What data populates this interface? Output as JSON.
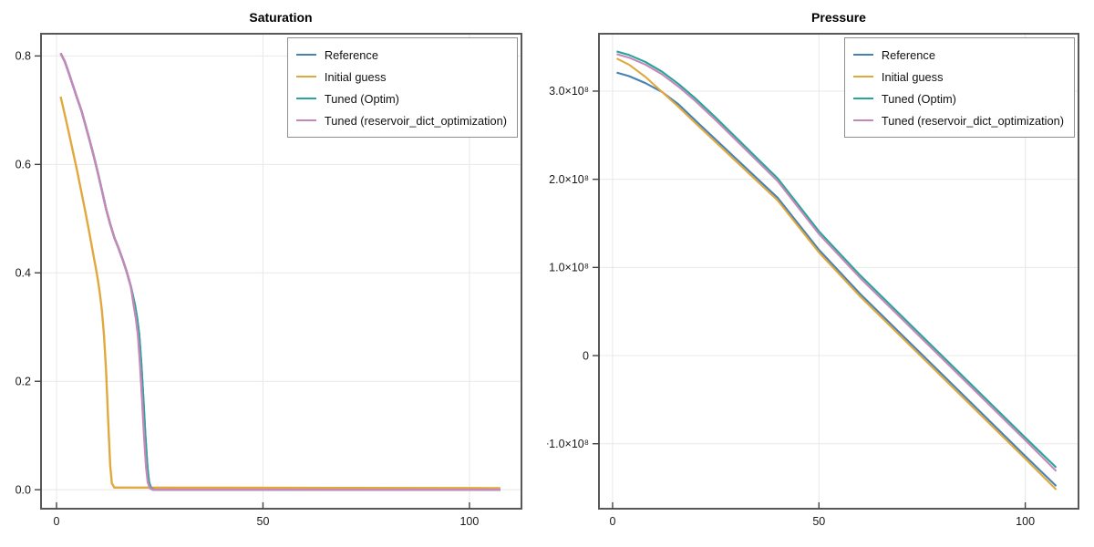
{
  "figure": {
    "background": "#ffffff"
  },
  "chart_data": [
    {
      "type": "line",
      "title": "Saturation",
      "xlabel": "",
      "ylabel": "",
      "grid": true,
      "legend_position": "top-right",
      "xlim": [
        -3.75,
        112.6
      ],
      "ylim": [
        -0.035,
        0.841
      ],
      "xticks": {
        "values": [
          0,
          50,
          100
        ],
        "labels": [
          "0",
          "50",
          "100"
        ]
      },
      "yticks": {
        "values": [
          0.0,
          0.2,
          0.4,
          0.6,
          0.8
        ],
        "labels": [
          "0.0",
          "0.2",
          "0.4",
          "0.6",
          "0.8"
        ]
      },
      "series": [
        {
          "name": "Reference",
          "color": "#4682b4",
          "points": [
            [
              1,
              0.805
            ],
            [
              2,
              0.79
            ],
            [
              3,
              0.768
            ],
            [
              4,
              0.745
            ],
            [
              5,
              0.722
            ],
            [
              6,
              0.7
            ],
            [
              7,
              0.673
            ],
            [
              8,
              0.645
            ],
            [
              9,
              0.616
            ],
            [
              10,
              0.585
            ],
            [
              11,
              0.552
            ],
            [
              12,
              0.518
            ],
            [
              13,
              0.49
            ],
            [
              14,
              0.465
            ],
            [
              15,
              0.446
            ],
            [
              16,
              0.425
            ],
            [
              17,
              0.402
            ],
            [
              18,
              0.375
            ],
            [
              19,
              0.34
            ],
            [
              19.5,
              0.317
            ],
            [
              20,
              0.287
            ],
            [
              20.5,
              0.235
            ],
            [
              21,
              0.17
            ],
            [
              21.5,
              0.1
            ],
            [
              22,
              0.042
            ],
            [
              22.4,
              0.014
            ],
            [
              22.9,
              0.003
            ],
            [
              23.6,
              0.0
            ],
            [
              107.5,
              0.0
            ]
          ]
        },
        {
          "name": "Initial guess",
          "color": "#e1a83d",
          "points": [
            [
              1,
              0.725
            ],
            [
              2,
              0.692
            ],
            [
              3,
              0.658
            ],
            [
              4,
              0.623
            ],
            [
              5,
              0.588
            ],
            [
              6,
              0.55
            ],
            [
              7,
              0.512
            ],
            [
              8,
              0.472
            ],
            [
              9,
              0.43
            ],
            [
              9.5,
              0.41
            ],
            [
              10,
              0.388
            ],
            [
              10.5,
              0.362
            ],
            [
              11,
              0.33
            ],
            [
              11.5,
              0.285
            ],
            [
              12,
              0.22
            ],
            [
              12.5,
              0.13
            ],
            [
              13,
              0.045
            ],
            [
              13.4,
              0.012
            ],
            [
              14,
              0.004
            ],
            [
              107.5,
              0.003
            ]
          ]
        },
        {
          "name": "Tuned (Optim)",
          "color": "#27a59a",
          "points": [
            [
              1,
              0.805
            ],
            [
              2,
              0.79
            ],
            [
              3,
              0.768
            ],
            [
              4,
              0.745
            ],
            [
              5,
              0.722
            ],
            [
              6,
              0.7
            ],
            [
              7,
              0.673
            ],
            [
              8,
              0.645
            ],
            [
              9,
              0.616
            ],
            [
              10,
              0.585
            ],
            [
              11,
              0.552
            ],
            [
              12,
              0.518
            ],
            [
              13,
              0.49
            ],
            [
              14,
              0.465
            ],
            [
              15,
              0.446
            ],
            [
              16,
              0.425
            ],
            [
              17,
              0.402
            ],
            [
              18,
              0.375
            ],
            [
              19,
              0.34
            ],
            [
              19.5,
              0.317
            ],
            [
              20,
              0.287
            ],
            [
              20.5,
              0.235
            ],
            [
              21,
              0.17
            ],
            [
              21.5,
              0.1
            ],
            [
              22,
              0.042
            ],
            [
              22.4,
              0.014
            ],
            [
              22.9,
              0.003
            ],
            [
              23.6,
              0.0
            ],
            [
              107.5,
              0.0
            ]
          ]
        },
        {
          "name": "Tuned (reservoir_dict_optimization)",
          "color": "#c687b9",
          "points": [
            [
              1,
              0.805
            ],
            [
              2,
              0.79
            ],
            [
              3,
              0.768
            ],
            [
              4,
              0.745
            ],
            [
              5,
              0.722
            ],
            [
              6,
              0.7
            ],
            [
              7,
              0.673
            ],
            [
              8,
              0.645
            ],
            [
              9,
              0.616
            ],
            [
              10,
              0.585
            ],
            [
              11,
              0.552
            ],
            [
              12,
              0.518
            ],
            [
              13,
              0.49
            ],
            [
              14,
              0.465
            ],
            [
              15,
              0.446
            ],
            [
              16,
              0.425
            ],
            [
              17,
              0.402
            ],
            [
              18,
              0.375
            ],
            [
              18.7,
              0.34
            ],
            [
              19.2,
              0.317
            ],
            [
              19.7,
              0.287
            ],
            [
              20.2,
              0.235
            ],
            [
              20.7,
              0.17
            ],
            [
              21.2,
              0.1
            ],
            [
              21.7,
              0.042
            ],
            [
              22.1,
              0.014
            ],
            [
              22.6,
              0.003
            ],
            [
              23.3,
              0.0
            ],
            [
              107.5,
              0.0
            ]
          ]
        }
      ]
    },
    {
      "type": "line",
      "title": "Pressure",
      "xlabel": "",
      "ylabel": "",
      "grid": true,
      "legend_position": "top-right",
      "xlim": [
        -3.3,
        112.9
      ],
      "ylim": [
        -173700000.0,
        365100000.0
      ],
      "xticks": {
        "values": [
          0,
          50,
          100
        ],
        "labels": [
          "0",
          "50",
          "100"
        ]
      },
      "yticks": {
        "values": [
          -100000000.0,
          0,
          100000000.0,
          200000000.0,
          300000000.0
        ],
        "labels": [
          "−1.0×10⁸",
          "0",
          "1.0×10⁸",
          "2.0×10⁸",
          "3.0×10⁸"
        ]
      },
      "series": [
        {
          "name": "Reference",
          "color": "#4682b4",
          "points": [
            [
              1,
              321000000.0
            ],
            [
              4,
              317000000.0
            ],
            [
              8,
              309000000.0
            ],
            [
              12,
              299000000.0
            ],
            [
              16,
              285000000.0
            ],
            [
              20,
              267000000.0
            ],
            [
              25,
              245000000.0
            ],
            [
              30,
              223000000.0
            ],
            [
              35,
              201000000.0
            ],
            [
              40,
              179000000.0
            ],
            [
              50,
              120000000.0
            ],
            [
              60,
              70000000.0
            ],
            [
              70,
              24000000.0
            ],
            [
              80,
              -22000000.0
            ],
            [
              90,
              -68000000.0
            ],
            [
              100,
              -114000000.0
            ],
            [
              107.5,
              -148000000.0
            ]
          ]
        },
        {
          "name": "Initial guess",
          "color": "#e1a83d",
          "points": [
            [
              1,
              337000000.0
            ],
            [
              4,
              330000000.0
            ],
            [
              8,
              316000000.0
            ],
            [
              12,
              299000000.0
            ],
            [
              16,
              282000000.0
            ],
            [
              20,
              264000000.0
            ],
            [
              25,
              242000000.0
            ],
            [
              30,
              220000000.0
            ],
            [
              35,
              198000000.0
            ],
            [
              40,
              176000000.0
            ],
            [
              50,
              117000000.0
            ],
            [
              60,
              67000000.0
            ],
            [
              70,
              21000000.0
            ],
            [
              80,
              -25000000.0
            ],
            [
              90,
              -71000000.0
            ],
            [
              100,
              -117000000.0
            ],
            [
              107.5,
              -152000000.0
            ]
          ]
        },
        {
          "name": "Tuned (Optim)",
          "color": "#27a59a",
          "points": [
            [
              1,
              345000000.0
            ],
            [
              4,
              341000000.0
            ],
            [
              8,
              333000000.0
            ],
            [
              12,
              322000000.0
            ],
            [
              16,
              308000000.0
            ],
            [
              20,
              292000000.0
            ],
            [
              25,
              270000000.0
            ],
            [
              30,
              247000000.0
            ],
            [
              35,
              224000000.0
            ],
            [
              40,
              201000000.0
            ],
            [
              50,
              141000000.0
            ],
            [
              60,
              91000000.0
            ],
            [
              70,
              45000000.0
            ],
            [
              80,
              -1000000.0
            ],
            [
              90,
              -47000000.0
            ],
            [
              100,
              -93000000.0
            ],
            [
              107.5,
              -127000000.0
            ]
          ]
        },
        {
          "name": "Tuned (reservoir_dict_optimization)",
          "color": "#c687b9",
          "points": [
            [
              1,
              342000000.0
            ],
            [
              4,
              338000000.0
            ],
            [
              8,
              330000000.0
            ],
            [
              12,
              319000000.0
            ],
            [
              16,
              305000000.0
            ],
            [
              20,
              289000000.0
            ],
            [
              25,
              267000000.0
            ],
            [
              30,
              244000000.0
            ],
            [
              35,
              221000000.0
            ],
            [
              40,
              198000000.0
            ],
            [
              50,
              138000000.0
            ],
            [
              60,
              88000000.0
            ],
            [
              70,
              42000000.0
            ],
            [
              80,
              -4000000.0
            ],
            [
              90,
              -50000000.0
            ],
            [
              100,
              -96000000.0
            ],
            [
              107.5,
              -131000000.0
            ]
          ]
        }
      ]
    }
  ]
}
